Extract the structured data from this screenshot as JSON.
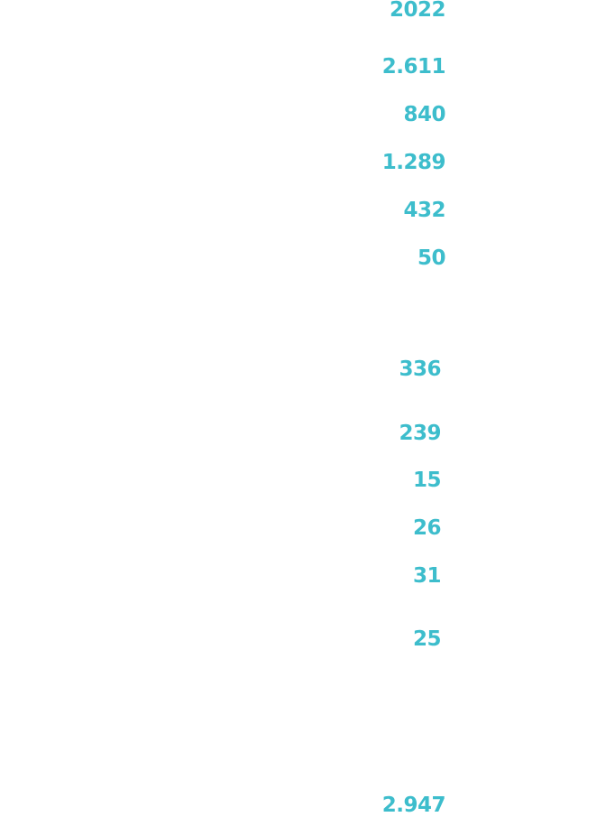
{
  "year_header": "2022",
  "group_1": {
    "values": [
      "2.611",
      "840",
      "1.289",
      "432",
      "50"
    ]
  },
  "group_2": {
    "values": [
      "336",
      "239",
      "15",
      "26",
      "31",
      "25"
    ]
  },
  "total": "2.947",
  "accent_color": "#3dbdcc"
}
